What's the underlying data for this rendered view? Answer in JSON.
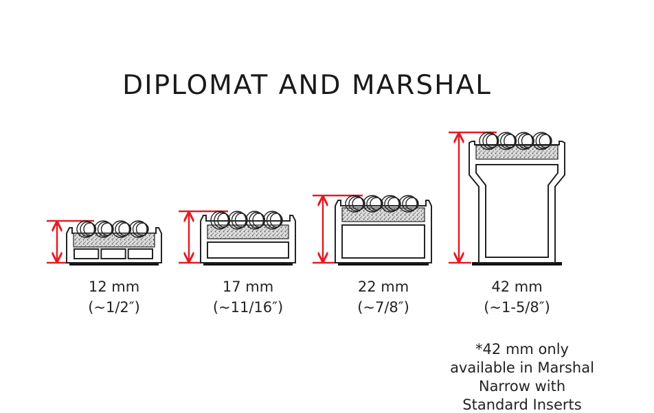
{
  "header": {
    "title": "DIPLOMAT AND MARSHAL"
  },
  "profiles": [
    {
      "size": "12 mm",
      "inches": "(~1/2″)"
    },
    {
      "size": "17 mm",
      "inches": "(~11/16″)"
    },
    {
      "size": "22 mm",
      "inches": "(~7/8″)"
    },
    {
      "size": "42 mm",
      "inches": "(~1-5/8″)"
    }
  ],
  "footnote": {
    "lines": [
      "*42 mm only",
      "available in Marshal",
      "Narrow with",
      "Standard Inserts"
    ]
  }
}
